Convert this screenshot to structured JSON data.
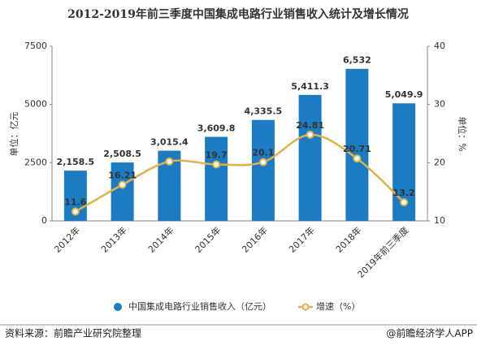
{
  "chart_data": {
    "type": "bar",
    "title": "2012-2019年前三季度中国集成电路行业销售收入统计及增长情况",
    "categories": [
      "2012年",
      "2013年",
      "2014年",
      "2015年",
      "2016年",
      "2017年",
      "2018年",
      "2019年前三季度"
    ],
    "ylabel": "单位：亿元",
    "y2label": "单位：%",
    "ylim": [
      0,
      7500
    ],
    "yticks": [
      0,
      2500,
      5000,
      7500
    ],
    "y2lim": [
      10,
      40
    ],
    "y2ticks": [
      10,
      20,
      30,
      40
    ],
    "series": [
      {
        "name": "中国集成电路行业销售收入（亿元）",
        "type": "bar",
        "color": "#1b7cc3",
        "values": [
          2158.5,
          2508.5,
          3015.4,
          3609.8,
          4335.5,
          5411.3,
          6532,
          5049.9
        ],
        "value_labels": [
          "2,158.5",
          "2,508.5",
          "3,015.4",
          "3,609.8",
          "4,335.5",
          "5,411.3",
          "6,532",
          "5,049.9"
        ]
      },
      {
        "name": "增速（%）",
        "type": "line",
        "axis": "y2",
        "color": "#e3b044",
        "values": [
          11.6,
          16.21,
          20.2,
          19.7,
          20.1,
          24.81,
          20.71,
          13.2
        ],
        "value_labels": [
          "11.6",
          "16.21",
          null,
          "19.7",
          "20.1",
          "24.81",
          "20.71",
          "13.2"
        ]
      }
    ],
    "source": "资料来源：前瞻产业研究院整理",
    "credit": "@前瞻经济学人APP"
  }
}
